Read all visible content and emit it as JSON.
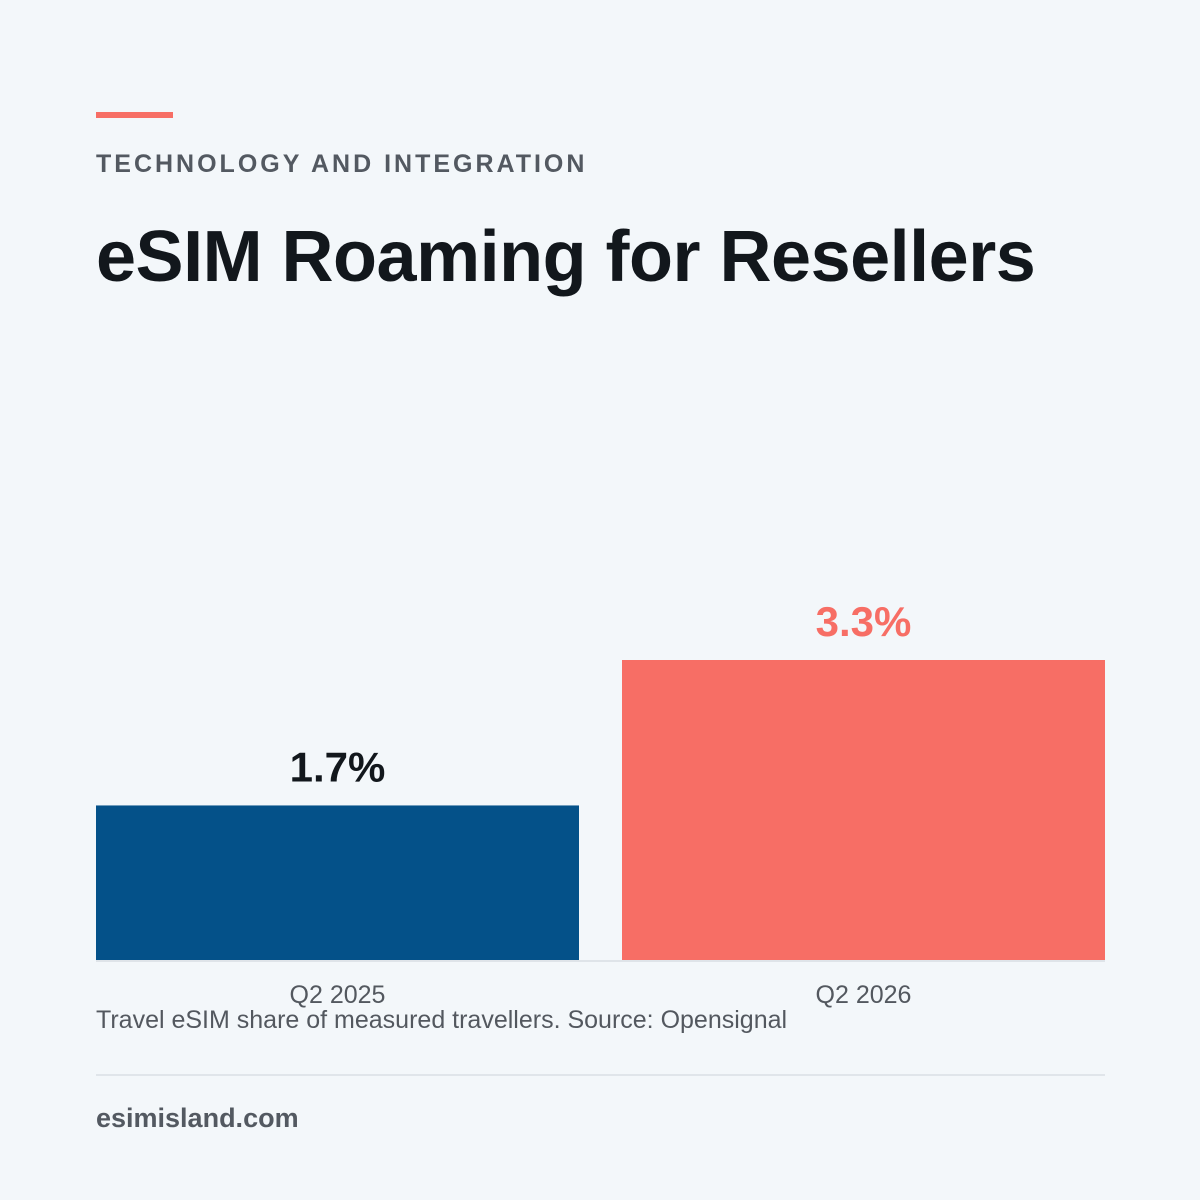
{
  "header": {
    "kicker": "TECHNOLOGY AND INTEGRATION",
    "title": "eSIM Roaming for Resellers"
  },
  "colors": {
    "accent": "#f76e65",
    "primary_bar": "#045189",
    "highlight_bar": "#f76e65",
    "text_dark": "#12171c",
    "text_muted": "#535961"
  },
  "chart_data": {
    "type": "bar",
    "categories": [
      "Q2 2025",
      "Q2 2026"
    ],
    "values": [
      1.7,
      3.3
    ],
    "value_labels": [
      "1.7%",
      "3.3%"
    ],
    "bar_colors": [
      "#045189",
      "#f76e65"
    ],
    "label_colors": [
      "#12171c",
      "#f76e65"
    ],
    "xlabel": "",
    "ylabel": "",
    "grid": false,
    "legend": "none"
  },
  "caption": "Travel eSIM share of measured travellers. Source: Opensignal",
  "footer": {
    "site": "esimisland.com"
  }
}
